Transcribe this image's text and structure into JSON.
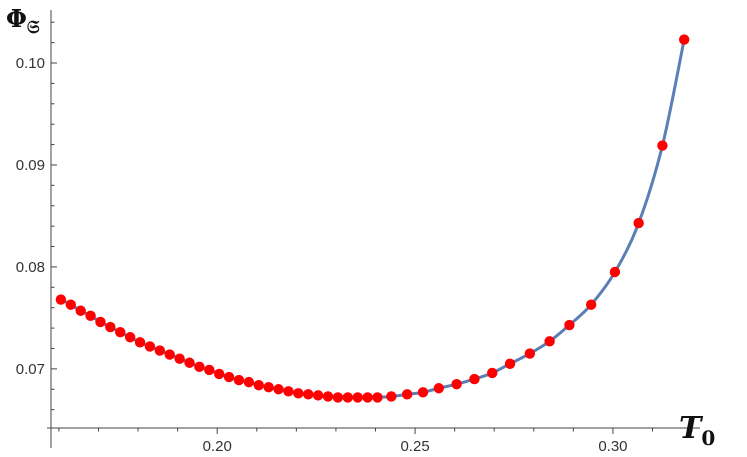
{
  "chart_data": {
    "type": "scatter",
    "ylabel": "Φ",
    "ylabel_subscript": "𝔖",
    "xlabel": "T",
    "xlabel_subscript": "0",
    "xlim": [
      0.158,
      0.322
    ],
    "ylim": [
      0.0642,
      0.1052
    ],
    "x_ticks": [
      0.2,
      0.25,
      0.3
    ],
    "x_tick_labels": [
      "0.20",
      "0.25",
      "0.30"
    ],
    "y_ticks": [
      0.07,
      0.08,
      0.09,
      0.1
    ],
    "y_tick_labels": [
      "0.07",
      "0.08",
      "0.09",
      "0.10"
    ],
    "grid": false,
    "line_color": "#5b7fb5",
    "marker_color": "#ff0000",
    "axis_color": "#444444",
    "x": [
      0.1605,
      0.163,
      0.1655,
      0.168,
      0.1705,
      0.173,
      0.1755,
      0.178,
      0.1805,
      0.183,
      0.1855,
      0.188,
      0.1905,
      0.193,
      0.1955,
      0.198,
      0.2005,
      0.203,
      0.2055,
      0.208,
      0.2105,
      0.213,
      0.2155,
      0.218,
      0.2205,
      0.223,
      0.2255,
      0.228,
      0.2305,
      0.233,
      0.2355,
      0.238,
      0.2405,
      0.244,
      0.248,
      0.252,
      0.256,
      0.2605,
      0.265,
      0.2695,
      0.274,
      0.279,
      0.284,
      0.289,
      0.2945,
      0.3005,
      0.3065,
      0.3125,
      0.318
    ],
    "y": [
      0.0768,
      0.0763,
      0.0757,
      0.0752,
      0.0746,
      0.0741,
      0.0736,
      0.0731,
      0.0726,
      0.0722,
      0.0718,
      0.0714,
      0.071,
      0.0706,
      0.0702,
      0.0699,
      0.0695,
      0.0692,
      0.0689,
      0.0687,
      0.0684,
      0.0682,
      0.068,
      0.0678,
      0.0676,
      0.0675,
      0.0674,
      0.0673,
      0.0672,
      0.0672,
      0.0672,
      0.0672,
      0.0672,
      0.0673,
      0.0675,
      0.0677,
      0.0681,
      0.0685,
      0.069,
      0.0696,
      0.0705,
      0.0715,
      0.0727,
      0.0743,
      0.0763,
      0.0795,
      0.0843,
      0.0919,
      0.1023
    ]
  }
}
